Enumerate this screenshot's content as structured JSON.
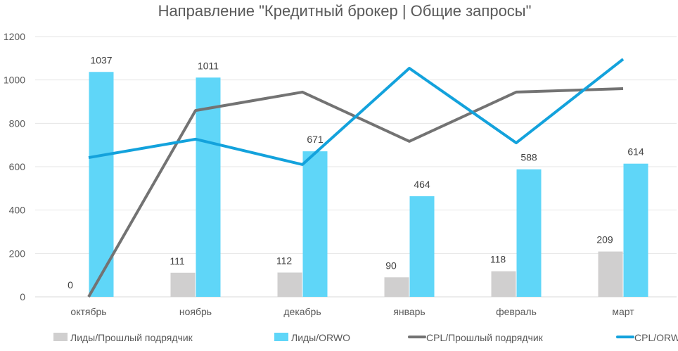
{
  "chart_data": {
    "type": "bar",
    "title": "Направление \"Кредитный брокер | Общие запросы\"",
    "xlabel": "",
    "ylabel": "",
    "ylim": [
      0,
      1200
    ],
    "yticks": [
      0,
      200,
      400,
      600,
      800,
      1000,
      1200
    ],
    "grid": true,
    "legend_position": "bottom",
    "categories": [
      "октябрь",
      "ноябрь",
      "декабрь",
      "январь",
      "февраль",
      "март"
    ],
    "series": [
      {
        "name": "Лиды/Прошлый подрядчик",
        "kind": "bar",
        "color": "#d0cfcf",
        "values": [
          0,
          111,
          112,
          90,
          118,
          209
        ],
        "labels": true
      },
      {
        "name": "Лиды/ORWO",
        "kind": "bar",
        "color": "#5fd6f8",
        "values": [
          1037,
          1011,
          671,
          464,
          588,
          614
        ],
        "labels": true
      },
      {
        "name": "CPL/Прошлый подрядчик",
        "kind": "line",
        "color": "#737373",
        "values": [
          0,
          859,
          944,
          717,
          944,
          960
        ],
        "labels": false
      },
      {
        "name": "CPL/ORWO",
        "kind": "line",
        "color": "#13a2dc",
        "values": [
          642,
          727,
          610,
          1054,
          710,
          1096
        ],
        "labels": false
      }
    ]
  }
}
